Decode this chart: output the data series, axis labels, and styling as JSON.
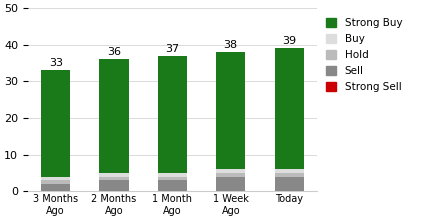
{
  "categories": [
    "3 Months\nAgo",
    "2 Months\nAgo",
    "1 Month\nAgo",
    "1 Week\nAgo",
    "Today"
  ],
  "strong_buy": [
    29,
    31,
    32,
    32,
    33
  ],
  "buy": [
    1,
    1,
    1,
    1,
    1
  ],
  "hold": [
    1,
    1,
    1,
    1,
    1
  ],
  "sell": [
    2,
    3,
    3,
    4,
    4
  ],
  "strong_sell": [
    0,
    0,
    0,
    0,
    0
  ],
  "totals": [
    33,
    36,
    37,
    38,
    39
  ],
  "colors": {
    "strong_buy": "#1a7a1a",
    "buy": "#dddddd",
    "hold": "#bbbbbb",
    "sell": "#888888",
    "strong_sell": "#cc0000"
  },
  "ylim": [
    0,
    50
  ],
  "yticks": [
    0,
    10,
    20,
    30,
    40,
    50
  ],
  "bar_width": 0.5,
  "figsize": [
    4.4,
    2.2
  ],
  "dpi": 100
}
